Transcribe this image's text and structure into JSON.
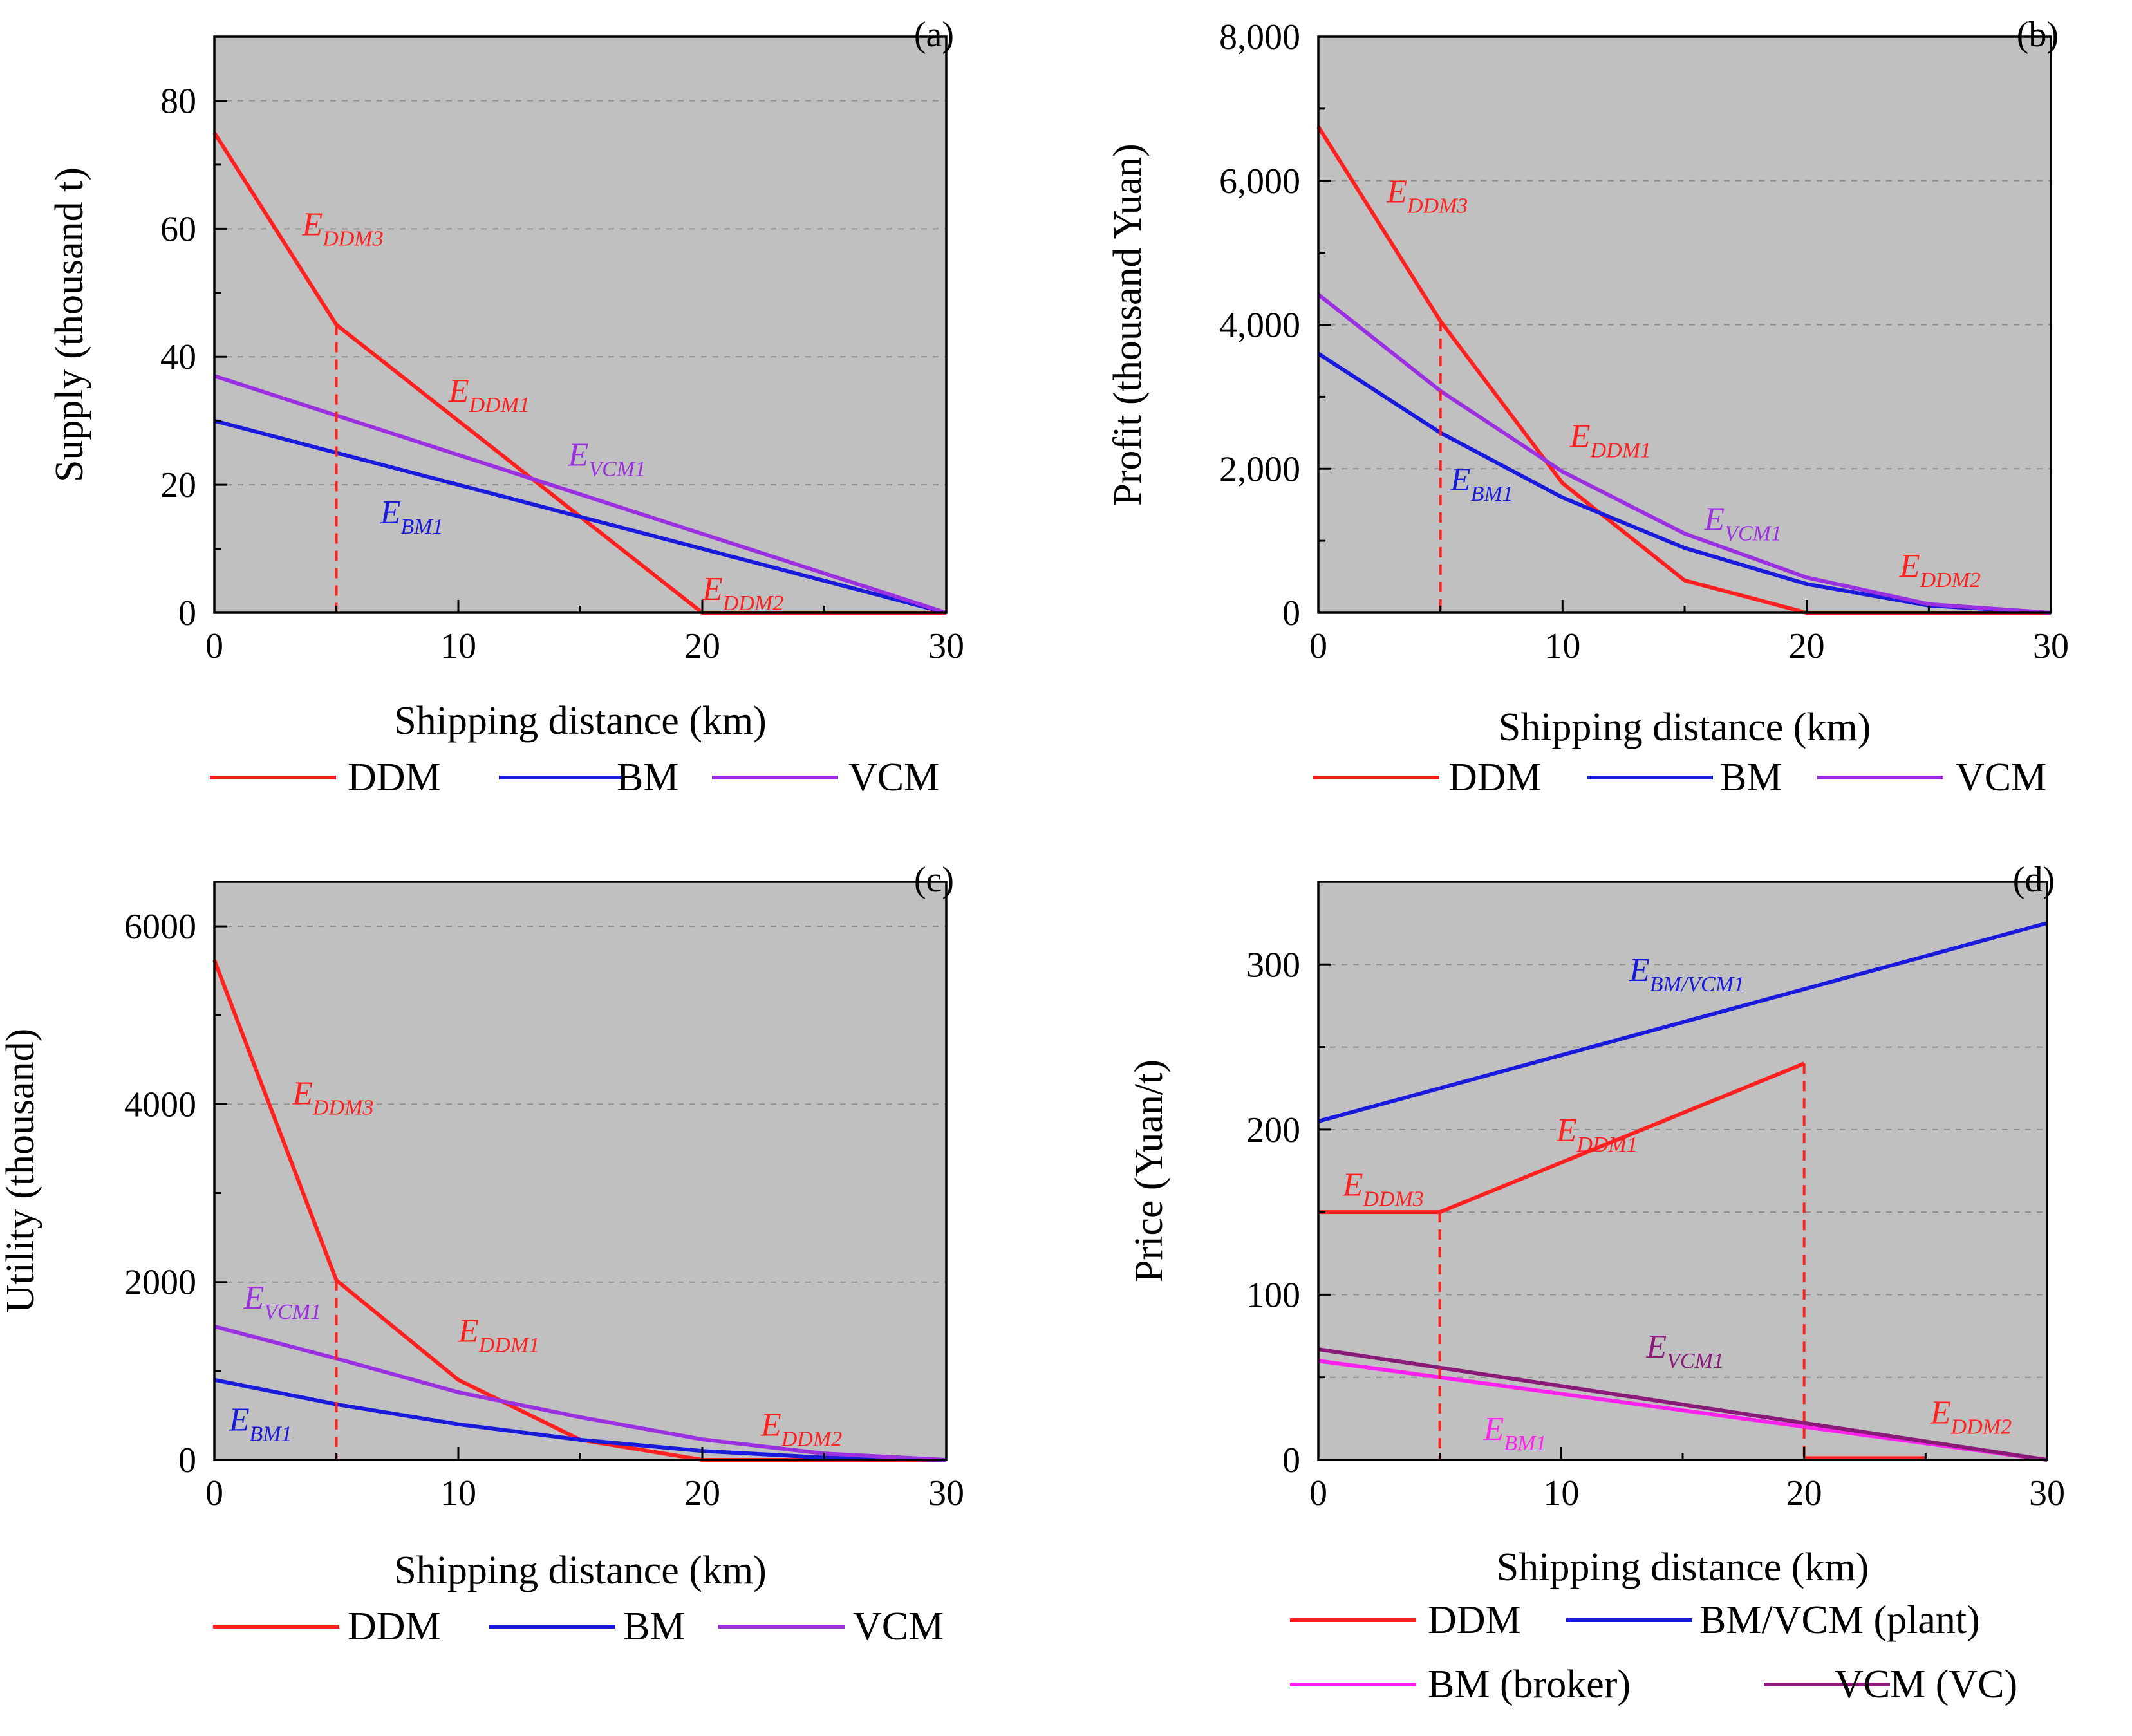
{
  "chart_data": [
    {
      "type": "line",
      "panel": "(a)",
      "ylabel": "Supply (thousand t)",
      "xlabel": "Shipping distance (km)",
      "xlim": [
        0,
        30
      ],
      "ylim": [
        0,
        90
      ],
      "xticks": [
        "0",
        "10",
        "20",
        "30"
      ],
      "yticks": [
        {
          "v": 0,
          "t": "0"
        },
        {
          "v": 20,
          "t": "20"
        },
        {
          "v": 40,
          "t": "40"
        },
        {
          "v": 60,
          "t": "60"
        },
        {
          "v": 80,
          "t": "80"
        }
      ],
      "gridlines": [
        20,
        40,
        60,
        80
      ],
      "series": [
        {
          "name": "DDM",
          "color": "#ff2020",
          "points": [
            [
              0,
              75
            ],
            [
              5,
              45
            ],
            [
              10,
              30
            ],
            [
              15,
              15
            ],
            [
              20,
              0
            ],
            [
              30,
              0
            ]
          ]
        },
        {
          "name": "BM",
          "color": "#1a1adc",
          "points": [
            [
              0,
              30
            ],
            [
              30,
              0
            ]
          ]
        },
        {
          "name": "VCM",
          "color": "#9a30e0",
          "points": [
            [
              0,
              37
            ],
            [
              30,
              0
            ]
          ]
        }
      ],
      "vlines": [
        {
          "x": 5,
          "y": 45,
          "color": "#ff2020"
        }
      ],
      "annotations": [
        {
          "main": "E",
          "sub": "DDM3",
          "x": 3.6,
          "y": 59,
          "color": "#ff2020"
        },
        {
          "main": "E",
          "sub": "DDM1",
          "x": 9.6,
          "y": 33,
          "color": "#ff2020"
        },
        {
          "main": "E",
          "sub": "VCM1",
          "x": 14.5,
          "y": 23,
          "color": "#9a30e0"
        },
        {
          "main": "E",
          "sub": "BM1",
          "x": 6.8,
          "y": 14,
          "color": "#1a1adc"
        },
        {
          "main": "E",
          "sub": "DDM2",
          "x": 20,
          "y": 2,
          "color": "#ff2020"
        }
      ],
      "legend": [
        {
          "label": "DDM",
          "color": "#ff2020"
        },
        {
          "label": "BM",
          "color": "#1a1adc"
        },
        {
          "label": "VCM",
          "color": "#9a30e0"
        }
      ]
    },
    {
      "type": "line",
      "panel": "(b)",
      "ylabel": "Profit (thousand Yuan)",
      "xlabel": "Shipping distance (km)",
      "xlim": [
        0,
        30
      ],
      "ylim": [
        0,
        8000
      ],
      "xticks": [
        "0",
        "10",
        "20",
        "30"
      ],
      "yticks": [
        {
          "v": 0,
          "t": "0"
        },
        {
          "v": 2000,
          "t": "2,000"
        },
        {
          "v": 4000,
          "t": "4,000"
        },
        {
          "v": 6000,
          "t": "6,000"
        },
        {
          "v": 8000,
          "t": "8,000"
        }
      ],
      "gridlines": [
        2000,
        4000,
        6000
      ],
      "series": [
        {
          "name": "DDM",
          "color": "#ff2020",
          "points": [
            [
              0,
              6750
            ],
            [
              5,
              4050
            ],
            [
              10,
              1800
            ],
            [
              15,
              450
            ],
            [
              20,
              0
            ],
            [
              30,
              0
            ]
          ]
        },
        {
          "name": "BM",
          "color": "#1a1adc",
          "points": [
            [
              0,
              3600
            ],
            [
              5,
              2500
            ],
            [
              10,
              1600
            ],
            [
              15,
              900
            ],
            [
              20,
              400
            ],
            [
              25,
              100
            ],
            [
              30,
              0
            ]
          ]
        },
        {
          "name": "VCM",
          "color": "#9a30e0",
          "points": [
            [
              0,
              4420
            ],
            [
              5,
              3080
            ],
            [
              10,
              1960
            ],
            [
              15,
              1100
            ],
            [
              20,
              490
            ],
            [
              25,
              120
            ],
            [
              30,
              0
            ]
          ]
        }
      ],
      "vlines": [
        {
          "x": 5,
          "y": 4050,
          "color": "#ff2020"
        }
      ],
      "annotations": [
        {
          "main": "E",
          "sub": "DDM3",
          "x": 2.8,
          "y": 5700,
          "color": "#ff2020"
        },
        {
          "main": "E",
          "sub": "DDM1",
          "x": 10.3,
          "y": 2300,
          "color": "#ff2020"
        },
        {
          "main": "E",
          "sub": "BM1",
          "x": 5.4,
          "y": 1700,
          "color": "#1a1adc"
        },
        {
          "main": "E",
          "sub": "VCM1",
          "x": 15.8,
          "y": 1150,
          "color": "#9a30e0"
        },
        {
          "main": "E",
          "sub": "DDM2",
          "x": 23.8,
          "y": 500,
          "color": "#ff2020"
        }
      ],
      "legend": [
        {
          "label": "DDM",
          "color": "#ff2020"
        },
        {
          "label": "BM",
          "color": "#1a1adc"
        },
        {
          "label": "VCM",
          "color": "#9a30e0"
        }
      ]
    },
    {
      "type": "line",
      "panel": "(c)",
      "ylabel": "Utility (thousand)",
      "xlabel": "Shipping distance (km)",
      "xlim": [
        0,
        30
      ],
      "ylim": [
        0,
        6500
      ],
      "xticks": [
        "0",
        "10",
        "20",
        "30"
      ],
      "yticks": [
        {
          "v": 0,
          "t": "0"
        },
        {
          "v": 2000,
          "t": "2000"
        },
        {
          "v": 4000,
          "t": "4000"
        },
        {
          "v": 6000,
          "t": "6000"
        }
      ],
      "gridlines": [
        2000,
        4000,
        6000
      ],
      "series": [
        {
          "name": "DDM",
          "color": "#ff2020",
          "points": [
            [
              0,
              5620
            ],
            [
              5,
              2020
            ],
            [
              10,
              900
            ],
            [
              15,
              225
            ],
            [
              20,
              0
            ],
            [
              30,
              0
            ]
          ]
        },
        {
          "name": "BM",
          "color": "#1a1adc",
          "points": [
            [
              0,
              900
            ],
            [
              5,
              625
            ],
            [
              10,
              400
            ],
            [
              15,
              225
            ],
            [
              20,
              100
            ],
            [
              25,
              25
            ],
            [
              30,
              0
            ]
          ]
        },
        {
          "name": "VCM",
          "color": "#9a30e0",
          "points": [
            [
              0,
              1500
            ],
            [
              5,
              1140
            ],
            [
              10,
              760
            ],
            [
              15,
              480
            ],
            [
              20,
              230
            ],
            [
              25,
              70
            ],
            [
              30,
              0
            ]
          ]
        }
      ],
      "vlines": [
        {
          "x": 5,
          "y": 2020,
          "color": "#ff2020"
        }
      ],
      "annotations": [
        {
          "main": "E",
          "sub": "DDM3",
          "x": 3.2,
          "y": 4000,
          "color": "#ff2020"
        },
        {
          "main": "E",
          "sub": "VCM1",
          "x": 1.2,
          "y": 1700,
          "color": "#9a30e0"
        },
        {
          "main": "E",
          "sub": "DDM1",
          "x": 10,
          "y": 1330,
          "color": "#ff2020"
        },
        {
          "main": "E",
          "sub": "BM1",
          "x": 0.6,
          "y": 330,
          "color": "#1a1adc"
        },
        {
          "main": "E",
          "sub": "DDM2",
          "x": 22.4,
          "y": 270,
          "color": "#ff2020"
        }
      ],
      "legend": [
        {
          "label": "DDM",
          "color": "#ff2020"
        },
        {
          "label": "BM",
          "color": "#1a1adc"
        },
        {
          "label": "VCM",
          "color": "#9a30e0"
        }
      ]
    },
    {
      "type": "line",
      "panel": "(d)",
      "ylabel": "Price (Yuan/t)",
      "xlabel": "Shipping distance (km)",
      "xlim": [
        0,
        30
      ],
      "ylim": [
        0,
        350
      ],
      "xticks": [
        "0",
        "10",
        "20",
        "30"
      ],
      "yticks": [
        {
          "v": 0,
          "t": "0"
        },
        {
          "v": 100,
          "t": "100"
        },
        {
          "v": 200,
          "t": "200"
        },
        {
          "v": 300,
          "t": "300"
        }
      ],
      "gridlines": [
        50,
        100,
        150,
        200,
        250,
        300
      ],
      "series": [
        {
          "name": "DDM",
          "color": "#ff2020",
          "points": [
            [
              0,
              150
            ],
            [
              5,
              150
            ],
            [
              10,
              180
            ],
            [
              15,
              210
            ],
            [
              20,
              240
            ]
          ]
        },
        {
          "name": "DDM",
          "color": "#ff2020",
          "points": [
            [
              20,
              1
            ],
            [
              25,
              1
            ]
          ],
          "hide_legend": true
        },
        {
          "name": "BM/VCM (plant)",
          "color": "#1a1adc",
          "points": [
            [
              0,
              205
            ],
            [
              30,
              325
            ]
          ]
        },
        {
          "name": "BM (broker)",
          "color": "#ff22ee",
          "points": [
            [
              0,
              60
            ],
            [
              30,
              0
            ]
          ]
        },
        {
          "name": "VCM (VC)",
          "color": "#8a1a78",
          "points": [
            [
              0,
              67
            ],
            [
              30,
              0
            ]
          ]
        }
      ],
      "vlines": [
        {
          "x": 5,
          "y": 150,
          "color": "#ff2020"
        },
        {
          "x": 20,
          "y": 240,
          "color": "#ff2020"
        }
      ],
      "annotations": [
        {
          "main": "E",
          "sub": "BM/VCM1",
          "x": 12.8,
          "y": 290,
          "color": "#1a1adc"
        },
        {
          "main": "E",
          "sub": "DDM1",
          "x": 9.8,
          "y": 193,
          "color": "#ff2020"
        },
        {
          "main": "E",
          "sub": "DDM3",
          "x": 1,
          "y": 160,
          "color": "#ff2020"
        },
        {
          "main": "E",
          "sub": "VCM1",
          "x": 13.5,
          "y": 62,
          "color": "#8a1a78"
        },
        {
          "main": "E",
          "sub": "BM1",
          "x": 6.8,
          "y": 12,
          "color": "#ff22ee"
        },
        {
          "main": "E",
          "sub": "DDM2",
          "x": 25.2,
          "y": 22,
          "color": "#ff2020"
        }
      ],
      "legend": [
        {
          "label": "DDM",
          "color": "#ff2020"
        },
        {
          "label": "BM/VCM (plant)",
          "color": "#1a1adc"
        },
        {
          "label": "BM (broker)",
          "color": "#ff22ee"
        },
        {
          "label": "VCM (VC)",
          "color": "#8a1a78"
        }
      ]
    }
  ]
}
